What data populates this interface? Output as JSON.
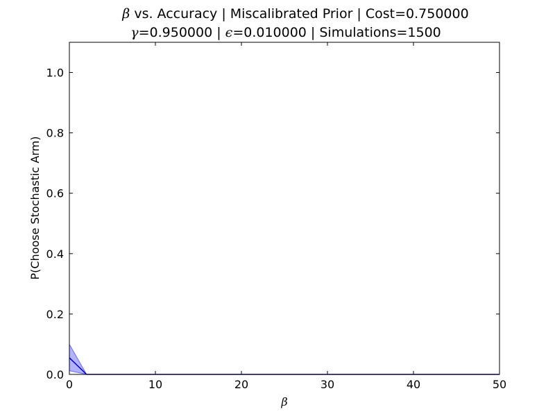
{
  "chart_data": {
    "type": "line",
    "title_line1": {
      "symbol": "β",
      "text": " vs. Accuracy | Miscalibrated Prior | Cost=0.750000"
    },
    "title_line2": {
      "gamma_symbol": "γ",
      "gamma_text": "=0.950000 | ",
      "epsilon_symbol": "ϵ",
      "epsilon_text": "=0.010000 | Simulations=1500"
    },
    "xlabel": "β",
    "ylabel": "P(Choose Stochastic Arm)",
    "xlim": [
      0,
      50
    ],
    "ylim": [
      0,
      1.1
    ],
    "x_ticks": [
      0,
      10,
      20,
      30,
      40,
      50
    ],
    "x_tick_labels": [
      "0",
      "10",
      "20",
      "30",
      "40",
      "50"
    ],
    "y_ticks": [
      0.0,
      0.2,
      0.4,
      0.6,
      0.8,
      1.0
    ],
    "y_tick_labels": [
      "0.0",
      "0.2",
      "0.4",
      "0.6",
      "0.8",
      "1.0"
    ],
    "grid": false,
    "series": [
      {
        "x": [
          0,
          2,
          4,
          6,
          8,
          10,
          12,
          14,
          16,
          18,
          20,
          22,
          24,
          26,
          28,
          30,
          32,
          34,
          36,
          38,
          40,
          42,
          44,
          46,
          48,
          50
        ],
        "y": [
          0.055,
          0,
          0,
          0,
          0,
          0,
          0,
          0,
          0,
          0,
          0,
          0,
          0,
          0,
          0,
          0,
          0,
          0,
          0,
          0,
          0,
          0,
          0,
          0,
          0,
          0
        ],
        "lower": [
          0.012,
          0,
          0,
          0,
          0,
          0,
          0,
          0,
          0,
          0,
          0,
          0,
          0,
          0,
          0,
          0,
          0,
          0,
          0,
          0,
          0,
          0,
          0,
          0,
          0,
          0
        ],
        "upper": [
          0.1,
          0,
          0,
          0,
          0,
          0,
          0,
          0,
          0,
          0,
          0,
          0,
          0,
          0,
          0,
          0,
          0,
          0,
          0,
          0,
          0,
          0,
          0,
          0,
          0,
          0
        ],
        "line_color": "#0000bf",
        "band_color": "#0000ff"
      }
    ]
  }
}
